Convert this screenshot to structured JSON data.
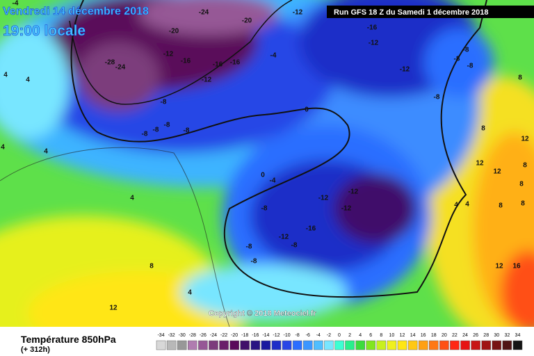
{
  "header": {
    "date": "Vendredi 14 décembre 2018",
    "time": "19:00 locale",
    "run": "Run GFS 18 Z du Samedi 1 décembre 2018",
    "copyright": "Copyright © 2018 Meteociel.fr"
  },
  "legend": {
    "title": "Température 850hPa",
    "lead": "(+ 312h)",
    "scale": [
      {
        "value": -34,
        "color": "#d8d8d8"
      },
      {
        "value": -32,
        "color": "#b8b8b8"
      },
      {
        "value": -30,
        "color": "#989898"
      },
      {
        "value": -28,
        "color": "#b07cb0"
      },
      {
        "value": -26,
        "color": "#965896"
      },
      {
        "value": -24,
        "color": "#7c3c7c"
      },
      {
        "value": -22,
        "color": "#6a1e6a"
      },
      {
        "value": -20,
        "color": "#5a0a5a"
      },
      {
        "value": -18,
        "color": "#40106a"
      },
      {
        "value": -16,
        "color": "#281482"
      },
      {
        "value": -14,
        "color": "#1a1aa0"
      },
      {
        "value": -12,
        "color": "#1e2ec8"
      },
      {
        "value": -10,
        "color": "#2846e6"
      },
      {
        "value": -8,
        "color": "#2c6eff"
      },
      {
        "value": -6,
        "color": "#3c96ff"
      },
      {
        "value": -4,
        "color": "#50beff"
      },
      {
        "value": -2,
        "color": "#78e6ff"
      },
      {
        "value": 0,
        "color": "#3cffd2"
      },
      {
        "value": 2,
        "color": "#28f08c"
      },
      {
        "value": 4,
        "color": "#3cdc3c"
      },
      {
        "value": 6,
        "color": "#82e61e"
      },
      {
        "value": 8,
        "color": "#c8f01e"
      },
      {
        "value": 10,
        "color": "#f0f01e"
      },
      {
        "value": 12,
        "color": "#ffe614"
      },
      {
        "value": 14,
        "color": "#ffc814"
      },
      {
        "value": 16,
        "color": "#ffa014"
      },
      {
        "value": 18,
        "color": "#ff7814"
      },
      {
        "value": 20,
        "color": "#ff5014"
      },
      {
        "value": 22,
        "color": "#ff2814"
      },
      {
        "value": 24,
        "color": "#e61414"
      },
      {
        "value": 26,
        "color": "#c81414"
      },
      {
        "value": 28,
        "color": "#a01414"
      },
      {
        "value": 30,
        "color": "#781414"
      },
      {
        "value": 32,
        "color": "#501414"
      },
      {
        "value": 34,
        "color": "#141414"
      }
    ]
  },
  "contour_labels": [
    "-4",
    "-20",
    "-24",
    "-20",
    "-12",
    "-16",
    "-12",
    "-12",
    "-28",
    "-24",
    "-12",
    "-16",
    "-16",
    "-16",
    "-12",
    "-4",
    "-8",
    "-8",
    "-8",
    "-8",
    "-8",
    "-8",
    "-8",
    "-8",
    "-8",
    "0",
    "4",
    "4",
    "-4",
    "0",
    "-12",
    "-12",
    "-12",
    "-8",
    "-16",
    "-12",
    "-8",
    "-8",
    "-8",
    "4",
    "4",
    "8",
    "8",
    "12",
    "12",
    "12",
    "8",
    "4",
    "4",
    "8",
    "4",
    "12",
    "12",
    "16",
    "8",
    "8",
    "4",
    "8"
  ]
}
